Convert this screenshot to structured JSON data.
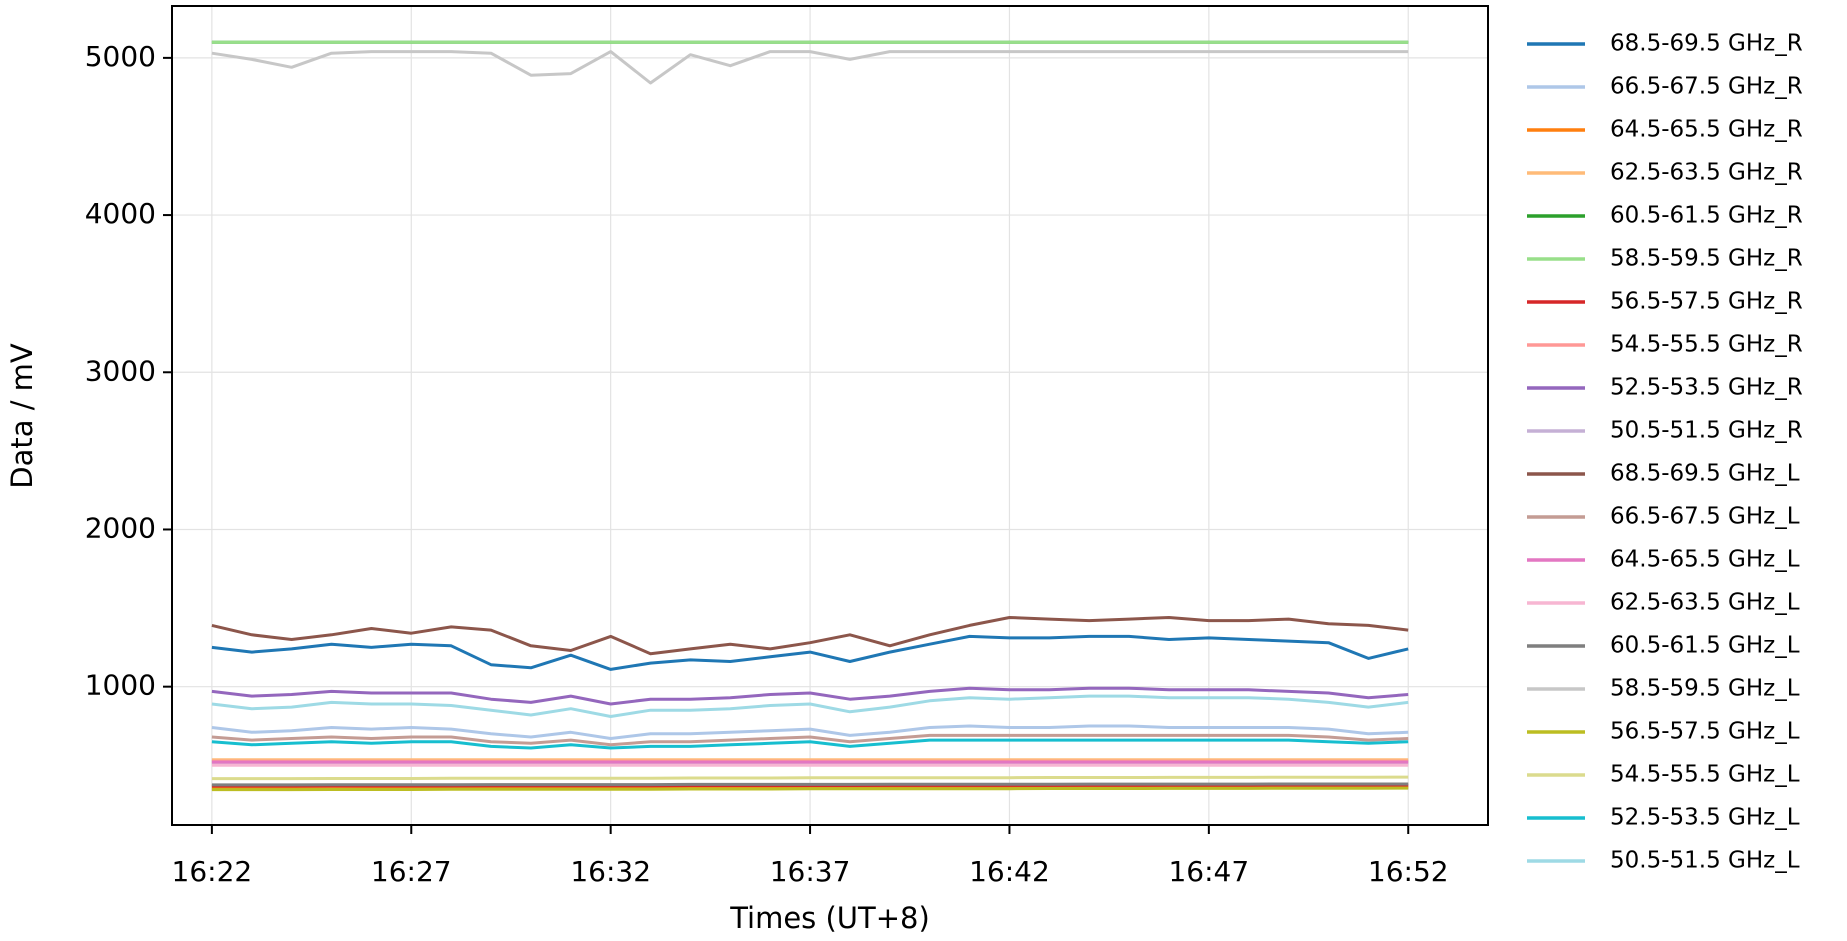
{
  "chart_data": {
    "type": "line",
    "x_label": "Times (UT+8)",
    "y_label": "Data / mV",
    "x": [
      "16:22",
      "16:23",
      "16:24",
      "16:25",
      "16:26",
      "16:27",
      "16:28",
      "16:29",
      "16:30",
      "16:31",
      "16:32",
      "16:33",
      "16:34",
      "16:35",
      "16:36",
      "16:37",
      "16:38",
      "16:39",
      "16:40",
      "16:41",
      "16:42",
      "16:43",
      "16:44",
      "16:45",
      "16:46",
      "16:47",
      "16:48",
      "16:49",
      "16:50",
      "16:51",
      "16:52"
    ],
    "xlim": [
      "16:21",
      "16:54"
    ],
    "xticks": [
      "16:22",
      "16:27",
      "16:32",
      "16:37",
      "16:42",
      "16:47",
      "16:52"
    ],
    "ylim": [
      120,
      5330
    ],
    "yticks": [
      1000,
      2000,
      3000,
      4000,
      5000
    ],
    "grid": true,
    "legend": "outside-right",
    "series": [
      {
        "name": "68.5-69.5 GHz_R",
        "color": "#1f77b4",
        "values": [
          1250,
          1220,
          1240,
          1270,
          1250,
          1270,
          1260,
          1140,
          1120,
          1200,
          1110,
          1150,
          1170,
          1160,
          1190,
          1220,
          1160,
          1220,
          1270,
          1320,
          1310,
          1310,
          1320,
          1320,
          1300,
          1310,
          1300,
          1290,
          1280,
          1180,
          1240
        ]
      },
      {
        "name": "66.5-67.5 GHz_R",
        "color": "#aec7e8",
        "values": [
          740,
          710,
          720,
          740,
          730,
          740,
          730,
          700,
          680,
          710,
          670,
          700,
          700,
          710,
          720,
          730,
          690,
          710,
          740,
          750,
          740,
          740,
          750,
          750,
          740,
          740,
          740,
          740,
          730,
          700,
          710
        ]
      },
      {
        "name": "64.5-65.5 GHz_R",
        "color": "#ff7f0e",
        "values": [
          350,
          350,
          351,
          351,
          352,
          352,
          352,
          353,
          353,
          353,
          354,
          354,
          354,
          355,
          355,
          355,
          356,
          356,
          356,
          357,
          357,
          357,
          358,
          358,
          358,
          359,
          359,
          359,
          360,
          360,
          360
        ]
      },
      {
        "name": "62.5-63.5 GHz_R",
        "color": "#ffbb78",
        "values": [
          535,
          535,
          535,
          535,
          535,
          535,
          535,
          535,
          535,
          535,
          535,
          535,
          535,
          535,
          535,
          535,
          535,
          535,
          535,
          535,
          535,
          535,
          535,
          535,
          535,
          535,
          535,
          535,
          535,
          535,
          535
        ]
      },
      {
        "name": "60.5-61.5 GHz_R",
        "color": "#2ca02c",
        "values": [
          5100,
          5100,
          5100,
          5100,
          5100,
          5100,
          5100,
          5100,
          5100,
          5100,
          5100,
          5100,
          5100,
          5100,
          5100,
          5100,
          5100,
          5100,
          5100,
          5100,
          5100,
          5100,
          5100,
          5100,
          5100,
          5100,
          5100,
          5100,
          5100,
          5100,
          5100
        ]
      },
      {
        "name": "58.5-59.5 GHz_R",
        "color": "#98df8a",
        "values": [
          5100,
          5100,
          5100,
          5100,
          5100,
          5100,
          5100,
          5100,
          5100,
          5100,
          5100,
          5100,
          5100,
          5100,
          5100,
          5100,
          5100,
          5100,
          5100,
          5100,
          5100,
          5100,
          5100,
          5100,
          5100,
          5100,
          5100,
          5100,
          5100,
          5100,
          5100
        ]
      },
      {
        "name": "56.5-57.5 GHz_R",
        "color": "#d62728",
        "values": [
          368,
          368,
          368,
          369,
          369,
          369,
          369,
          370,
          370,
          370,
          370,
          370,
          371,
          371,
          371,
          371,
          371,
          372,
          372,
          372,
          372,
          372,
          373,
          373,
          373,
          373,
          373,
          374,
          374,
          374,
          374
        ]
      },
      {
        "name": "54.5-55.5 GHz_R",
        "color": "#ff9896",
        "values": [
          525,
          525,
          525,
          525,
          525,
          525,
          525,
          525,
          525,
          525,
          525,
          525,
          525,
          525,
          525,
          525,
          525,
          525,
          525,
          525,
          525,
          525,
          525,
          525,
          525,
          525,
          525,
          525,
          525,
          525,
          525
        ]
      },
      {
        "name": "52.5-53.5 GHz_R",
        "color": "#9467bd",
        "values": [
          970,
          940,
          950,
          970,
          960,
          960,
          960,
          920,
          900,
          940,
          890,
          920,
          920,
          930,
          950,
          960,
          920,
          940,
          970,
          990,
          980,
          980,
          990,
          990,
          980,
          980,
          980,
          970,
          960,
          930,
          950
        ]
      },
      {
        "name": "50.5-51.5 GHz_R",
        "color": "#c5b0d5",
        "values": [
          510,
          510,
          510,
          510,
          510,
          510,
          510,
          510,
          510,
          510,
          510,
          510,
          510,
          510,
          510,
          510,
          510,
          510,
          510,
          510,
          510,
          510,
          510,
          510,
          510,
          510,
          510,
          510,
          510,
          510,
          510
        ]
      },
      {
        "name": "68.5-69.5 GHz_L",
        "color": "#8c564b",
        "values": [
          1390,
          1330,
          1300,
          1330,
          1370,
          1340,
          1380,
          1360,
          1260,
          1230,
          1320,
          1210,
          1240,
          1270,
          1240,
          1280,
          1330,
          1260,
          1330,
          1390,
          1440,
          1430,
          1420,
          1430,
          1440,
          1420,
          1420,
          1430,
          1400,
          1390,
          1360
        ]
      },
      {
        "name": "66.5-67.5 GHz_L",
        "color": "#c49c94",
        "values": [
          680,
          660,
          670,
          680,
          670,
          680,
          680,
          650,
          640,
          660,
          630,
          650,
          650,
          660,
          670,
          680,
          650,
          670,
          690,
          690,
          690,
          690,
          690,
          690,
          690,
          690,
          690,
          690,
          680,
          660,
          670
        ]
      },
      {
        "name": "64.5-65.5 GHz_L",
        "color": "#e377c2",
        "values": [
          520,
          520,
          520,
          520,
          520,
          520,
          520,
          520,
          520,
          520,
          520,
          520,
          520,
          520,
          520,
          520,
          520,
          520,
          520,
          520,
          520,
          520,
          520,
          520,
          520,
          520,
          520,
          520,
          520,
          520,
          520
        ]
      },
      {
        "name": "62.5-63.5 GHz_L",
        "color": "#f7b6d2",
        "values": [
          500,
          500,
          500,
          500,
          500,
          500,
          500,
          500,
          500,
          500,
          500,
          500,
          500,
          500,
          500,
          500,
          500,
          500,
          500,
          500,
          500,
          500,
          500,
          500,
          500,
          500,
          500,
          500,
          500,
          500,
          500
        ]
      },
      {
        "name": "60.5-61.5 GHz_L",
        "color": "#7f7f7f",
        "values": [
          375,
          375,
          375,
          376,
          376,
          376,
          376,
          377,
          377,
          377,
          377,
          377,
          378,
          378,
          378,
          378,
          378,
          379,
          379,
          379,
          379,
          379,
          380,
          380,
          380,
          380,
          380,
          381,
          381,
          381,
          381
        ]
      },
      {
        "name": "58.5-59.5 GHz_L",
        "color": "#c7c7c7",
        "values": [
          5030,
          4990,
          4940,
          5030,
          5040,
          5040,
          5040,
          5030,
          4890,
          4900,
          5040,
          4840,
          5020,
          4950,
          5040,
          5040,
          4990,
          5040,
          5040,
          5040,
          5040,
          5040,
          5040,
          5040,
          5040,
          5040,
          5040,
          5040,
          5040,
          5040,
          5040
        ]
      },
      {
        "name": "56.5-57.5 GHz_L",
        "color": "#bcbd22",
        "values": [
          345,
          345,
          345,
          346,
          346,
          346,
          347,
          347,
          347,
          348,
          348,
          348,
          349,
          349,
          349,
          350,
          350,
          350,
          351,
          351,
          351,
          352,
          352,
          352,
          353,
          353,
          353,
          354,
          354,
          354,
          355
        ]
      },
      {
        "name": "54.5-55.5 GHz_L",
        "color": "#dbdb8d",
        "values": [
          415,
          415,
          415,
          416,
          416,
          416,
          417,
          417,
          417,
          418,
          418,
          418,
          419,
          419,
          419,
          420,
          420,
          420,
          421,
          421,
          421,
          422,
          422,
          422,
          423,
          423,
          423,
          424,
          424,
          424,
          425
        ]
      },
      {
        "name": "52.5-53.5 GHz_L",
        "color": "#17becf",
        "values": [
          650,
          630,
          640,
          650,
          640,
          650,
          650,
          620,
          610,
          630,
          610,
          620,
          620,
          630,
          640,
          650,
          620,
          640,
          660,
          660,
          660,
          660,
          660,
          660,
          660,
          660,
          660,
          660,
          650,
          640,
          650
        ]
      },
      {
        "name": "50.5-51.5 GHz_L",
        "color": "#9edae5",
        "values": [
          890,
          860,
          870,
          900,
          890,
          890,
          880,
          850,
          820,
          860,
          810,
          850,
          850,
          860,
          880,
          890,
          840,
          870,
          910,
          930,
          920,
          930,
          940,
          940,
          930,
          930,
          930,
          920,
          900,
          870,
          900
        ]
      }
    ]
  }
}
